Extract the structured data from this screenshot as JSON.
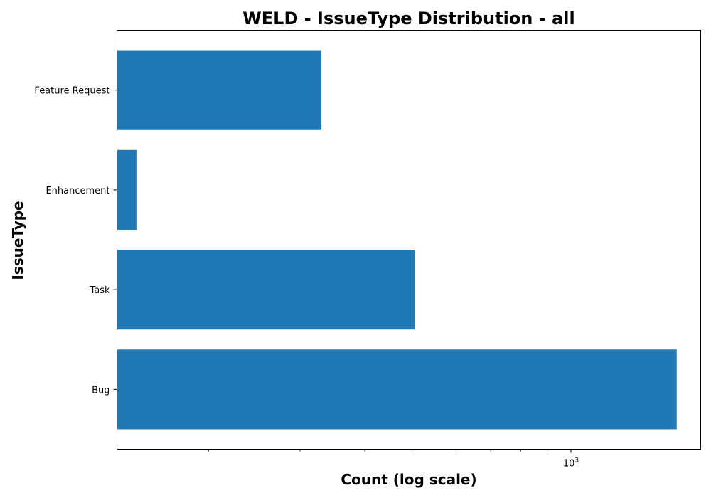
{
  "chart_data": {
    "type": "bar",
    "orientation": "horizontal",
    "title": "WELD - IssueType Distribution - all",
    "xlabel": "Count (log scale)",
    "ylabel": "IssueType",
    "x_scale": "log",
    "xlim": [
      133,
      1780
    ],
    "categories": [
      "Bug",
      "Task",
      "Enhancement",
      "Feature Request"
    ],
    "values": [
      1600,
      500,
      145,
      330
    ],
    "bar_color": "#1f77b4",
    "x_major_ticks": [
      {
        "value": 1000,
        "base": "10",
        "exponent": "3"
      }
    ],
    "x_minor_ticks": [
      200,
      300,
      400,
      500,
      600,
      700,
      800,
      900
    ],
    "grid": false,
    "legend": "none"
  }
}
